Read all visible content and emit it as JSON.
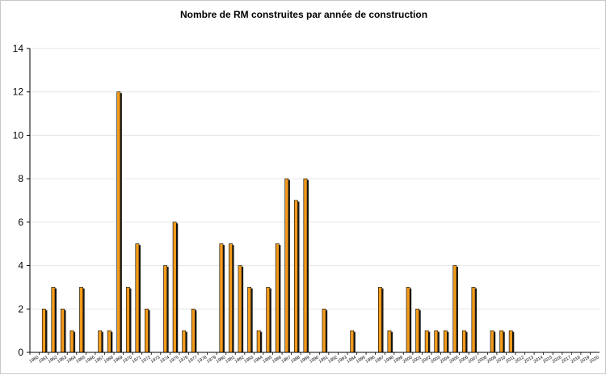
{
  "chart_data": {
    "type": "bar",
    "title": "Nombre de RM construites par année de construction",
    "xlabel": "",
    "ylabel": "",
    "ylim": [
      0,
      14
    ],
    "yticks": [
      0,
      2,
      4,
      6,
      8,
      10,
      12,
      14
    ],
    "grid": true,
    "legend": "none",
    "categories": [
      "1960",
      "1961",
      "1962",
      "1963",
      "1964",
      "1965",
      "1966",
      "1967",
      "1968",
      "1969",
      "1970",
      "1971",
      "1972",
      "1973",
      "1974",
      "1975",
      "1976",
      "1977",
      "1978",
      "1979",
      "1980",
      "1981",
      "1982",
      "1983",
      "1984",
      "1985",
      "1986",
      "1987",
      "1988",
      "1989",
      "1990",
      "1991",
      "1992",
      "1993",
      "1994",
      "1995",
      "1996",
      "1997",
      "1998",
      "1999",
      "2000",
      "2001",
      "2002",
      "2003",
      "2004",
      "2005",
      "2006",
      "2007",
      "2008",
      "2009",
      "2010",
      "2011",
      "2012",
      "2013",
      "2014",
      "2015",
      "2016",
      "2017",
      "2018",
      "2019",
      "2020"
    ],
    "values": [
      0,
      2,
      3,
      2,
      1,
      3,
      0,
      1,
      1,
      12,
      3,
      5,
      2,
      0,
      4,
      6,
      1,
      2,
      0,
      0,
      5,
      5,
      4,
      3,
      1,
      3,
      5,
      8,
      7,
      8,
      0,
      2,
      0,
      0,
      1,
      0,
      0,
      3,
      1,
      0,
      3,
      2,
      1,
      1,
      1,
      4,
      1,
      3,
      0,
      1,
      1,
      1,
      0,
      0,
      0,
      0,
      0,
      0,
      0,
      0,
      0
    ],
    "colors": {
      "bar_fill": "#f29b1c",
      "bar_shadow": "#1a1a1a",
      "bar_outline": "#000000",
      "grid": "#e6e6e6",
      "axis": "#000000"
    }
  }
}
